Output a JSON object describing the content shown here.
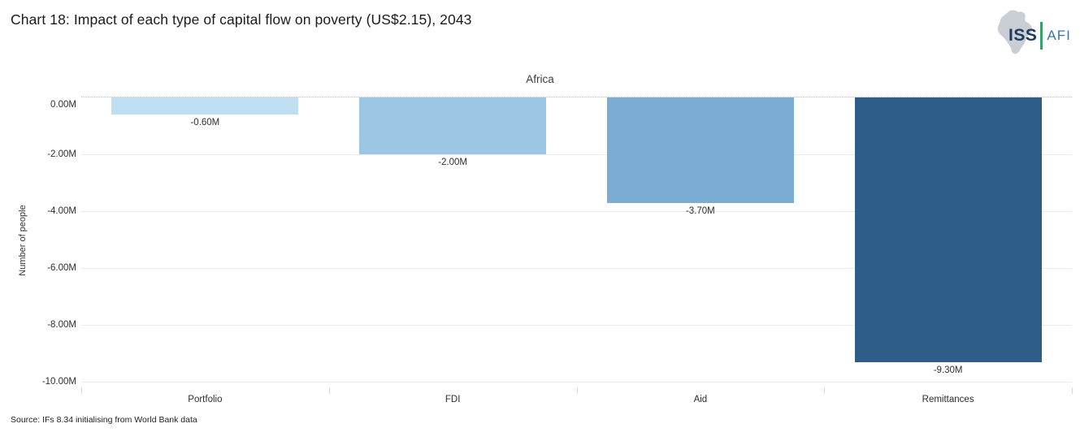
{
  "header": {
    "title": "Chart 18: Impact of each type of capital flow on poverty (US$2.15), 2043",
    "logo": {
      "icon": "africa-map-icon",
      "iss": "ISS",
      "afi": "AFI",
      "iss_color": "#1e3a5e",
      "afi_color": "#3b72b4",
      "separator_color": "#35a06a",
      "africa_silhouette_color": "#c8ced4"
    }
  },
  "chart_data": {
    "type": "bar",
    "title": "Africa",
    "categories": [
      "Portfolio",
      "FDI",
      "Aid",
      "Remittances"
    ],
    "values": [
      -0.6,
      -2.0,
      -3.7,
      -9.3
    ],
    "value_labels": [
      "-0.60M",
      "-2.00M",
      "-3.70M",
      "-9.30M"
    ],
    "bar_colors": [
      "#bedff2",
      "#9bc7e4",
      "#7badd2",
      "#2e5d8a"
    ],
    "xlabel": "",
    "ylabel": "Number of people",
    "ylim": [
      -10,
      0
    ],
    "yticks": [
      0,
      -2,
      -4,
      -6,
      -8,
      -10
    ],
    "ytick_labels": [
      "0.00M",
      "-2.00M",
      "-4.00M",
      "-6.00M",
      "-8.00M",
      "-10.00M"
    ],
    "grid": true,
    "legend": "none",
    "zero_line_style": "dotted"
  },
  "source": "Source: IFs 8.34 initialising from World Bank data"
}
